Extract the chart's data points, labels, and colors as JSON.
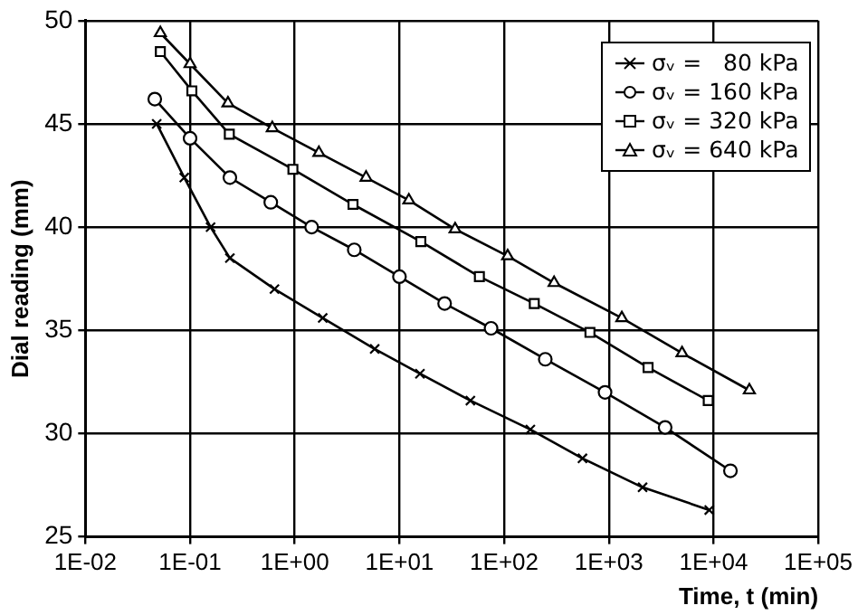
{
  "chart_data": {
    "type": "line",
    "xlabel": "Time, t (min)",
    "ylabel": "Dial reading (mm)",
    "log": "x",
    "xlim": [
      0.01,
      100000
    ],
    "ylim": [
      25,
      50
    ],
    "xticks": [
      {
        "value": 0.01,
        "label": "1E-02"
      },
      {
        "value": 0.1,
        "label": "1E-01"
      },
      {
        "value": 1,
        "label": "1E+00"
      },
      {
        "value": 10,
        "label": "1E+01"
      },
      {
        "value": 100,
        "label": "1E+02"
      },
      {
        "value": 1000,
        "label": "1E+03"
      },
      {
        "value": 10000,
        "label": "1E+04"
      },
      {
        "value": 100000,
        "label": "1E+05"
      }
    ],
    "yticks": [
      25,
      30,
      35,
      40,
      45,
      50
    ],
    "grid": true,
    "legend": "top right",
    "line_style": "solid",
    "series": [
      {
        "name": "σᵥ =   80 kPa",
        "color": "#000000",
        "marker": "cross",
        "x": [
          0.048,
          0.088,
          0.157,
          0.24,
          0.64,
          1.85,
          5.8,
          15.7,
          47.6,
          178,
          560,
          2100,
          9100
        ],
        "values": [
          45.0,
          42.4,
          40.0,
          38.5,
          37.0,
          35.6,
          34.1,
          32.9,
          31.6,
          30.2,
          28.8,
          27.4,
          26.3
        ]
      },
      {
        "name": "σᵥ = 160 kPa",
        "color": "#000000",
        "marker": "circle",
        "x": [
          0.046,
          0.1,
          0.24,
          0.59,
          1.45,
          3.7,
          10,
          27,
          75,
          247,
          920,
          3450,
          14500
        ],
        "values": [
          46.2,
          44.3,
          42.4,
          41.2,
          40.0,
          38.9,
          37.6,
          36.3,
          35.1,
          33.6,
          32.0,
          30.3,
          28.2
        ]
      },
      {
        "name": "σᵥ = 320 kPa",
        "color": "#000000",
        "marker": "square",
        "x": [
          0.052,
          0.104,
          0.237,
          0.96,
          3.6,
          16,
          58,
          194,
          660,
          2370,
          8900
        ],
        "values": [
          48.5,
          46.6,
          44.5,
          42.8,
          41.1,
          39.3,
          37.6,
          36.3,
          34.9,
          33.2,
          31.6
        ]
      },
      {
        "name": "σᵥ = 640 kPa",
        "color": "#000000",
        "marker": "triangle",
        "x": [
          0.052,
          0.1,
          0.23,
          0.61,
          1.7,
          4.8,
          12.3,
          34,
          108,
          300,
          1330,
          5000,
          22000
        ],
        "values": [
          49.4,
          47.9,
          46.0,
          44.8,
          43.6,
          42.4,
          41.3,
          39.9,
          38.6,
          37.3,
          35.6,
          33.9,
          32.1
        ]
      }
    ]
  }
}
